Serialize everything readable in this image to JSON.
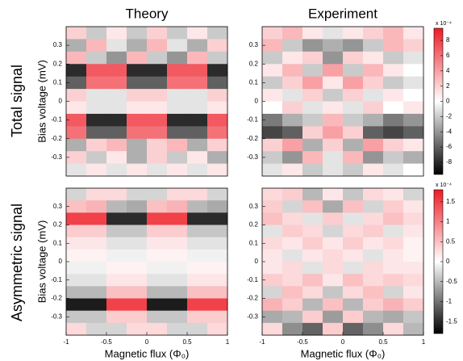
{
  "column_titles": [
    "Theory",
    "Experiment"
  ],
  "row_labels": [
    "Total signal",
    "Asymmetric signal"
  ],
  "chart_data": [
    {
      "type": "heatmap",
      "ylabel": "Bias voltage (mV)",
      "xlim": [
        -1,
        1
      ],
      "ylim": [
        -0.4,
        0.4
      ],
      "yticks": [
        -0.3,
        -0.2,
        -0.1,
        0,
        0.1,
        0.2,
        0.3
      ],
      "clim": [
        -9.6,
        9.6
      ],
      "colormap": [
        "#000000",
        "#ffffff",
        "#ee1c25"
      ],
      "values": [
        [
          2,
          -2,
          1,
          -2,
          2,
          -2,
          1,
          -2
        ],
        [
          -3,
          3,
          -1,
          -3,
          3,
          -1,
          -3,
          2
        ],
        [
          3,
          -2,
          -4,
          3,
          -2,
          -4,
          3,
          -2
        ],
        [
          -8,
          7,
          7,
          -8,
          -8,
          7,
          7,
          -8
        ],
        [
          -6,
          6,
          6,
          -6,
          -6,
          6,
          6,
          -6
        ],
        [
          2,
          -1,
          -1,
          2,
          2,
          -1,
          -1,
          2
        ],
        [
          1,
          -1,
          -1,
          1,
          1,
          -1,
          -1,
          1
        ],
        [
          7,
          -8,
          -8,
          7,
          7,
          -8,
          -8,
          7
        ],
        [
          6,
          -6,
          -6,
          6,
          6,
          -6,
          -6,
          6
        ],
        [
          -3,
          2,
          3,
          -3,
          2,
          3,
          -3,
          2
        ],
        [
          2,
          -2,
          1,
          -3,
          2,
          -2,
          1,
          -3
        ],
        [
          -1,
          1,
          -1,
          1,
          -1,
          1,
          -1,
          1
        ]
      ]
    },
    {
      "type": "heatmap",
      "xlim": [
        -1,
        1
      ],
      "ylim": [
        -0.4,
        0.4
      ],
      "yticks": [
        -0.3,
        -0.2,
        -0.1,
        0,
        0.1,
        0.2,
        0.3
      ],
      "clim": [
        -9.6,
        9.6
      ],
      "colormap": [
        "#000000",
        "#ffffff",
        "#ee1c25"
      ],
      "colorbar": {
        "ticks": [
          -8,
          -6,
          -4,
          -2,
          0,
          2,
          4,
          6,
          8
        ],
        "label": "x 10⁻⁴"
      },
      "values": [
        [
          2,
          3,
          1,
          -1,
          1,
          2,
          3,
          1
        ],
        [
          3,
          -2,
          -4,
          -3,
          -4,
          -2,
          3,
          2
        ],
        [
          -2,
          1,
          2,
          -4,
          2,
          1,
          -2,
          -1
        ],
        [
          1,
          3,
          -2,
          4,
          -2,
          3,
          1,
          0
        ],
        [
          -2,
          2,
          4,
          1,
          4,
          2,
          -2,
          -1
        ],
        [
          1,
          -1,
          2,
          -2,
          2,
          -1,
          1,
          0
        ],
        [
          0,
          2,
          -1,
          1,
          -1,
          2,
          0,
          1
        ],
        [
          -5,
          -3,
          -2,
          3,
          -2,
          -3,
          -5,
          -4
        ],
        [
          -7,
          -6,
          2,
          4,
          2,
          -6,
          -7,
          -6
        ],
        [
          2,
          4,
          -3,
          2,
          -3,
          4,
          2,
          1
        ],
        [
          -2,
          -4,
          3,
          -1,
          3,
          -4,
          -2,
          -3
        ],
        [
          -1,
          1,
          -2,
          -1,
          -2,
          1,
          -1,
          0
        ]
      ]
    },
    {
      "type": "heatmap",
      "xlabel": "Magnetic flux (Φ₀)",
      "ylabel": "Bias voltage (mV)",
      "xlim": [
        -1,
        1
      ],
      "ylim": [
        -0.4,
        0.4
      ],
      "xticks": [
        -1,
        -0.5,
        0,
        0.5,
        1
      ],
      "yticks": [
        -0.3,
        -0.2,
        -0.1,
        0,
        0.1,
        0.2,
        0.3
      ],
      "clim": [
        -1.8,
        1.8
      ],
      "colormap": [
        "#000000",
        "#ffffff",
        "#ee1c25"
      ],
      "values": [
        [
          -0.3,
          0.3,
          0.3,
          -0.3,
          -0.3,
          0.3,
          0.3,
          -0.3
        ],
        [
          0.5,
          0.6,
          -0.5,
          -0.6,
          0.5,
          0.6,
          -0.5,
          -0.6
        ],
        [
          1.5,
          1.5,
          -1.5,
          -1.5,
          1.5,
          1.5,
          -1.5,
          -1.5
        ],
        [
          0.4,
          0.4,
          -0.4,
          -0.4,
          0.4,
          0.4,
          -0.4,
          -0.4
        ],
        [
          0.2,
          0.2,
          -0.2,
          -0.2,
          0.2,
          0.2,
          -0.2,
          -0.2
        ],
        [
          0.1,
          0.1,
          -0.1,
          -0.1,
          0.1,
          0.1,
          -0.1,
          -0.1
        ],
        [
          -0.1,
          -0.1,
          0.1,
          0.1,
          -0.1,
          -0.1,
          0.1,
          0.1
        ],
        [
          -0.2,
          -0.2,
          0.2,
          0.2,
          -0.2,
          -0.2,
          0.2,
          0.2
        ],
        [
          -0.5,
          -0.5,
          0.5,
          0.5,
          -0.5,
          -0.5,
          0.5,
          0.5
        ],
        [
          -1.6,
          -1.6,
          1.5,
          1.5,
          -1.6,
          -1.6,
          1.5,
          1.5
        ],
        [
          -0.4,
          -0.4,
          0.4,
          0.4,
          -0.4,
          -0.4,
          0.4,
          0.4
        ],
        [
          0.3,
          -0.3,
          -0.3,
          0.3,
          0.3,
          -0.3,
          -0.3,
          0.3
        ]
      ]
    },
    {
      "type": "heatmap",
      "xlabel": "Magnetic flux (Φ₀)",
      "xlim": [
        -1,
        1
      ],
      "ylim": [
        -0.4,
        0.4
      ],
      "xticks": [
        -1,
        -0.5,
        0,
        0.5,
        1
      ],
      "yticks": [
        -0.3,
        -0.2,
        -0.1,
        0,
        0.1,
        0.2,
        0.3
      ],
      "clim": [
        -1.8,
        1.8
      ],
      "colormap": [
        "#000000",
        "#ffffff",
        "#ee1c25"
      ],
      "colorbar": {
        "ticks": [
          -1.5,
          -1,
          -0.5,
          0,
          0.5,
          1,
          1.5
        ],
        "label": "x 10⁻⁴"
      },
      "values": [
        [
          0.3,
          0.4,
          -0.5,
          0.2,
          -0.4,
          0.3,
          0.2,
          -0.3
        ],
        [
          0.4,
          -0.3,
          0.5,
          -0.6,
          0.5,
          -0.3,
          0.4,
          0.2
        ],
        [
          0.5,
          0.3,
          -0.2,
          0.4,
          -0.2,
          0.3,
          0.5,
          0.3
        ],
        [
          -0.2,
          0.4,
          0.3,
          -0.3,
          0.3,
          0.4,
          -0.2,
          0.2
        ],
        [
          0.3,
          0.2,
          0.4,
          0.2,
          0.4,
          0.2,
          0.3,
          0.1
        ],
        [
          0.2,
          -0.2,
          0.2,
          0.3,
          0.2,
          -0.2,
          0.2,
          0.1
        ],
        [
          0.2,
          0.3,
          -0.2,
          0.3,
          -0.2,
          0.3,
          0.2,
          0.2
        ],
        [
          0.4,
          0.3,
          0.5,
          0.2,
          0.5,
          0.3,
          0.4,
          0.3
        ],
        [
          -0.3,
          0.5,
          0.3,
          -0.4,
          0.3,
          0.5,
          -0.3,
          0.2
        ],
        [
          0.6,
          0.4,
          -0.5,
          0.5,
          -0.5,
          0.4,
          0.6,
          0.4
        ],
        [
          -0.6,
          -0.5,
          0.4,
          -0.7,
          0.4,
          -0.5,
          -0.6,
          -0.4
        ],
        [
          0.3,
          -0.8,
          -1.1,
          0.4,
          -1.1,
          -0.8,
          0.3,
          -0.5
        ]
      ]
    }
  ]
}
